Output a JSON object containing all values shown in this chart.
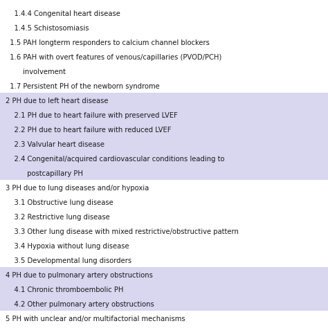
{
  "bg_color": "#ffffff",
  "highlight_color": "#d9d6f0",
  "text_color": "#1a1a1a",
  "font_size": 7.2,
  "lines": [
    {
      "text": "    1.4.4 Congenital heart disease",
      "bg": "white"
    },
    {
      "text": "    1.4.5 Schistosomiasis",
      "bg": "white"
    },
    {
      "text": "  1.5 PAH longterm responders to calcium channel blockers",
      "bg": "white"
    },
    {
      "text": "  1.6 PAH with overt features of venous/capillaries (PVOD/PCH)",
      "bg": "white"
    },
    {
      "text": "        involvement",
      "bg": "white"
    },
    {
      "text": "  1.7 Persistent PH of the newborn syndrome",
      "bg": "white"
    },
    {
      "text": "2 PH due to left heart disease",
      "bg": "highlight"
    },
    {
      "text": "    2.1 PH due to heart failure with preserved LVEF",
      "bg": "highlight"
    },
    {
      "text": "    2.2 PH due to heart failure with reduced LVEF",
      "bg": "highlight"
    },
    {
      "text": "    2.3 Valvular heart disease",
      "bg": "highlight"
    },
    {
      "text": "    2.4 Congenital/acquired cardiovascular conditions leading to",
      "bg": "highlight"
    },
    {
      "text": "          postcapillary PH",
      "bg": "highlight"
    },
    {
      "text": "3 PH due to lung diseases and/or hypoxia",
      "bg": "white"
    },
    {
      "text": "    3.1 Obstructive lung disease",
      "bg": "white"
    },
    {
      "text": "    3.2 Restrictive lung disease",
      "bg": "white"
    },
    {
      "text": "    3.3 Other lung disease with mixed restrictive/obstructive pattern",
      "bg": "white"
    },
    {
      "text": "    3.4 Hypoxia without lung disease",
      "bg": "white"
    },
    {
      "text": "    3.5 Developmental lung disorders",
      "bg": "white"
    },
    {
      "text": "4 PH due to pulmonary artery obstructions",
      "bg": "highlight"
    },
    {
      "text": "    4.1 Chronic thromboembolic PH",
      "bg": "highlight"
    },
    {
      "text": "    4.2 Other pulmonary artery obstructions",
      "bg": "highlight"
    },
    {
      "text": "5 PH with unclear and/or multifactorial mechanisms",
      "bg": "white"
    }
  ],
  "fig_width": 4.74,
  "fig_height": 4.74,
  "dpi": 100
}
